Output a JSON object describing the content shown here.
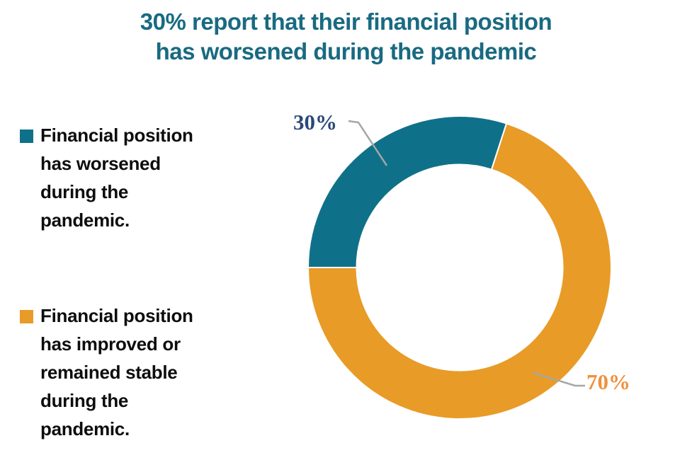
{
  "page": {
    "background_color": "#FFFFFF"
  },
  "title": {
    "text": "30% report that their financial position has worsened during the pandemic",
    "line1": "30% report that their financial position",
    "line2": "has worsened during the pandemic",
    "color": "#196A81"
  },
  "legend": {
    "position": "left",
    "text_color": "#0D0D0D",
    "items": [
      {
        "swatch_color": "#0F7189",
        "text": "Financial position has worsened during the pandemic.",
        "lines": [
          "Financial position",
          "has worsened",
          "during the",
          "pandemic."
        ]
      },
      {
        "swatch_color": "#E89B27",
        "text": "Financial position has improved or remained stable during the pandemic.",
        "lines": [
          "Financial position",
          "has improved or",
          "remained stable",
          "during the",
          "pandemic."
        ]
      }
    ]
  },
  "chart_data": {
    "type": "pie",
    "subtype": "donut",
    "title": "30% report that their financial position has worsened during the pandemic",
    "categories": [
      "Financial position has worsened during the pandemic.",
      "Financial position has improved or remained stable during the pandemic."
    ],
    "values": [
      30,
      70
    ],
    "slices": [
      {
        "label": "Financial position has worsened during the pandemic.",
        "value": 30,
        "percent_label": "30%",
        "color": "#0F7189",
        "label_color": "#2A4879"
      },
      {
        "label": "Financial position has improved or remained stable during the pandemic.",
        "value": 70,
        "percent_label": "70%",
        "color": "#E89B27",
        "label_color": "#F0913E"
      }
    ],
    "start_angle_deg": -90,
    "direction": "clockwise",
    "inner_radius_ratio": 0.68,
    "slice_border_color": "#FFFFFF",
    "leader_line_color": "#A6A6A6",
    "legend_position": "left",
    "grid": "off"
  }
}
